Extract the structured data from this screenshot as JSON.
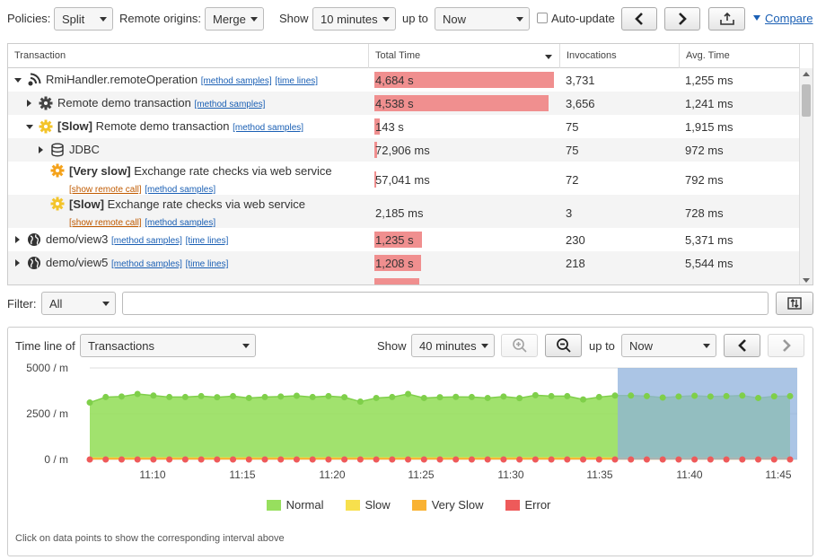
{
  "toolbar": {
    "policies_label": "Policies:",
    "policies_value": "Split",
    "remote_origins_label": "Remote origins:",
    "remote_origins_value": "Merge",
    "show_label": "Show",
    "show_value": "10 minutes",
    "up_to_label": "up to",
    "up_to_value": "Now",
    "auto_update_label": "Auto-update",
    "compare_label": "Compare"
  },
  "table": {
    "columns": [
      "Transaction",
      "Total Time",
      "Invocations",
      "Avg. Time"
    ],
    "method_samples": "[method samples]",
    "time_lines": "[time lines]",
    "show_remote_call": "[show remote call]",
    "rows": [
      {
        "name": "RmiHandler.remoteOperation",
        "prefix": "",
        "total": "4,684 s",
        "bar": 1.0,
        "inv": "3,731",
        "avg": "1,255 ms",
        "icon": "remote-icon",
        "expander": "down",
        "links": "inline-ms-tl"
      },
      {
        "name": "Remote demo transaction",
        "prefix": "",
        "total": "4,538 s",
        "bar": 0.969,
        "inv": "3,656",
        "avg": "1,241 ms",
        "icon": "gear-icon",
        "expander": "right",
        "links": "inline-ms"
      },
      {
        "name": "Remote demo transaction",
        "prefix": "[Slow]",
        "total": "143 s",
        "bar": 0.031,
        "inv": "75",
        "avg": "1,915 ms",
        "icon": "slow-gear-icon",
        "expander": "down",
        "links": "inline-ms"
      },
      {
        "name": "JDBC",
        "prefix": "",
        "total": "72,906 ms",
        "bar": 0.016,
        "inv": "75",
        "avg": "972 ms",
        "icon": "database-icon",
        "expander": "right",
        "links": "none"
      },
      {
        "name": "Exchange rate checks via web service",
        "prefix": "[Very slow]",
        "total": "57,041 ms",
        "bar": 0.012,
        "inv": "72",
        "avg": "792 ms",
        "icon": "veryslow-gear-icon",
        "expander": "none",
        "links": "sub"
      },
      {
        "name": "Exchange rate checks via web service",
        "prefix": "[Slow]",
        "total": "2,185 ms",
        "bar": 0.0,
        "inv": "3",
        "avg": "728 ms",
        "icon": "slow-gear-icon",
        "expander": "none",
        "links": "sub"
      },
      {
        "name": "demo/view3",
        "prefix": "",
        "total": "1,235 s",
        "bar": 0.264,
        "inv": "230",
        "avg": "5,371 ms",
        "icon": "globe-icon",
        "expander": "right",
        "links": "inline-ms-tl"
      },
      {
        "name": "demo/view5",
        "prefix": "",
        "total": "1,208 s",
        "bar": 0.258,
        "inv": "218",
        "avg": "5,544 ms",
        "icon": "globe-icon",
        "expander": "right",
        "links": "inline-ms-tl"
      }
    ]
  },
  "filter": {
    "label": "Filter:",
    "value": "All",
    "input_value": ""
  },
  "timeline": {
    "label": "Time line of",
    "value": "Transactions",
    "show_label": "Show",
    "show_value": "40 minutes",
    "up_to_label": "up to",
    "up_to_value": "Now",
    "hint": "Click on data points to show the corresponding interval above"
  },
  "colors": {
    "normal": "#97df5e",
    "slow": "#f7e04d",
    "very_slow": "#f9b233",
    "error": "#ee5a5a",
    "selection": "#8fb1dc",
    "bar": "#f08f8f"
  },
  "chart_data": {
    "type": "area",
    "ylim": [
      0,
      5000
    ],
    "y_ticks": [
      "5000 / m",
      "2500 / m",
      "0 / m"
    ],
    "x_ticks": [
      "11:10",
      "11:15",
      "11:20",
      "11:25",
      "11:30",
      "11:35",
      "11:40",
      "11:45"
    ],
    "series": [
      {
        "name": "Normal",
        "values": [
          3050,
          3350,
          3380,
          3520,
          3430,
          3350,
          3350,
          3400,
          3340,
          3400,
          3300,
          3350,
          3380,
          3420,
          3350,
          3400,
          3340,
          3100,
          3300,
          3350,
          3520,
          3300,
          3340,
          3360,
          3350,
          3300,
          3380,
          3290,
          3450,
          3400,
          3400,
          3220,
          3350,
          3430,
          3430,
          3400,
          3320,
          3380,
          3420,
          3380,
          3400,
          3430,
          3300,
          3390,
          3400
        ]
      },
      {
        "name": "Slow",
        "values": [
          60,
          60,
          60,
          60,
          60,
          60,
          60,
          60,
          60,
          60,
          60,
          60,
          60,
          60,
          60,
          60,
          60,
          60,
          60,
          60,
          60,
          60,
          60,
          60,
          60,
          60,
          60,
          60,
          60,
          60,
          60,
          60,
          60,
          60,
          60,
          60,
          60,
          60,
          60,
          60,
          60,
          60,
          60,
          60,
          60
        ]
      },
      {
        "name": "Very Slow",
        "values": [
          0,
          0,
          0,
          0,
          0,
          0,
          0,
          0,
          0,
          0,
          0,
          0,
          0,
          0,
          0,
          0,
          0,
          0,
          0,
          0,
          0,
          0,
          0,
          0,
          0,
          0,
          0,
          0,
          0,
          0,
          0,
          0,
          0,
          0,
          0,
          0,
          0,
          0,
          0,
          0,
          0,
          0,
          0,
          0,
          0
        ]
      },
      {
        "name": "Error",
        "values": [
          0,
          0,
          0,
          0,
          0,
          0,
          0,
          0,
          0,
          0,
          0,
          0,
          0,
          0,
          0,
          0,
          0,
          0,
          0,
          0,
          0,
          0,
          0,
          0,
          0,
          0,
          0,
          0,
          0,
          0,
          0,
          0,
          0,
          0,
          0,
          0,
          0,
          0,
          0,
          0,
          0,
          0,
          0,
          0,
          0
        ]
      }
    ],
    "legend": [
      "Normal",
      "Slow",
      "Very Slow",
      "Error"
    ],
    "legend_position": "bottom",
    "grid": true
  }
}
